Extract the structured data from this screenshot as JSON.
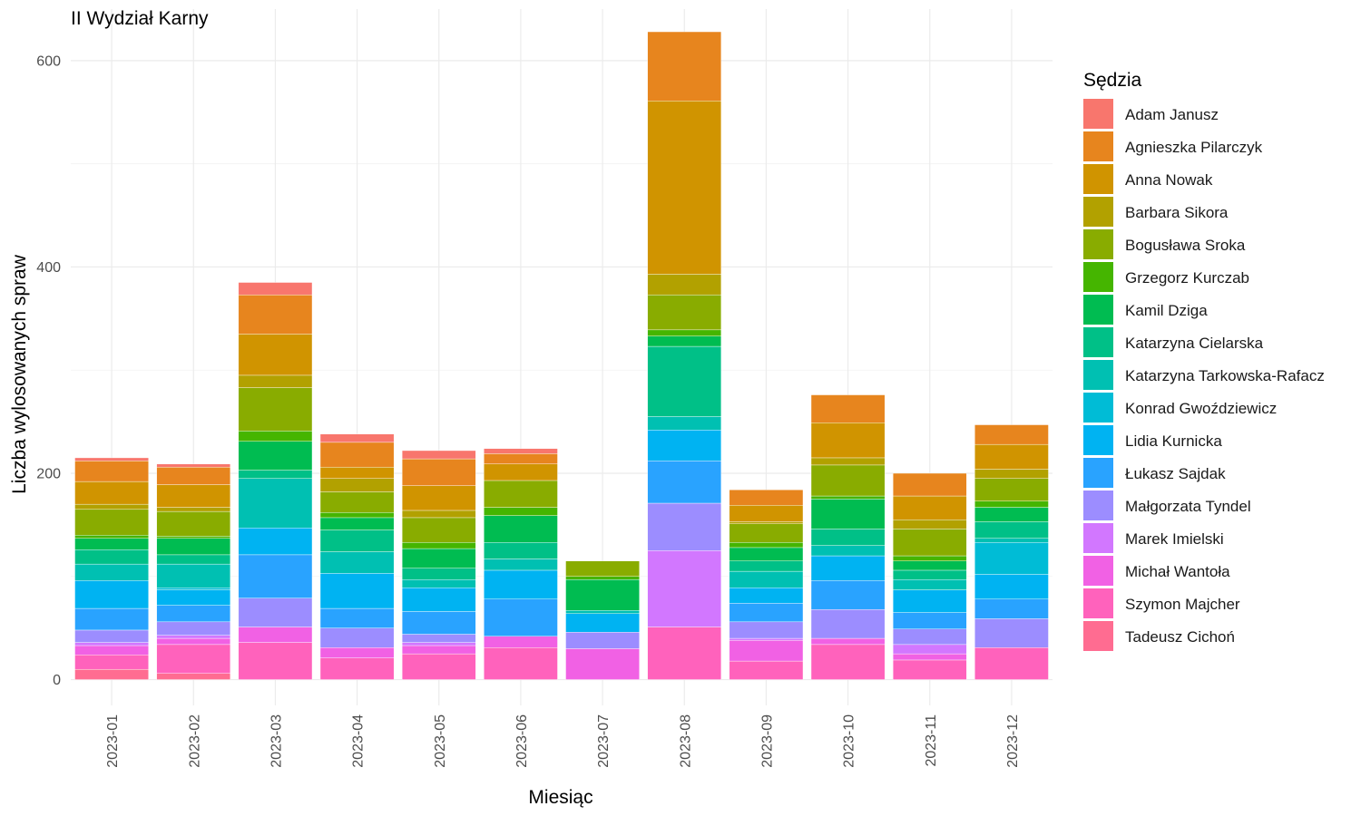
{
  "chart_data": {
    "type": "bar",
    "stacked": true,
    "title": "II Wydział Karny",
    "xlabel": "Miesiąc",
    "ylabel": "Liczba wylosowanych spraw",
    "ylim": [
      -25,
      650
    ],
    "yticks": [
      "0",
      "200",
      "400",
      "600"
    ],
    "ytick_values": [
      0,
      200,
      400,
      600
    ],
    "grid": true,
    "legend_position": "right",
    "legend_title": "Sędzia",
    "categories": [
      "2023-01",
      "2023-02",
      "2023-03",
      "2023-04",
      "2023-05",
      "2023-06",
      "2023-07",
      "2023-08",
      "2023-09",
      "2023-10",
      "2023-11",
      "2023-12"
    ],
    "series": [
      {
        "name": "Adam Janusz",
        "color": "#F8766D",
        "values": [
          3,
          3,
          12,
          8,
          8,
          5,
          0,
          0,
          0,
          0,
          0,
          0
        ]
      },
      {
        "name": "Agnieszka Pilarczyk",
        "color": "#E7851E",
        "values": [
          20,
          17,
          38,
          24,
          26,
          10,
          0,
          67,
          15,
          27,
          22,
          19
        ]
      },
      {
        "name": "Anna Nowak",
        "color": "#D09400",
        "values": [
          22,
          22,
          40,
          11,
          24,
          16,
          0,
          168,
          16,
          34,
          23,
          24
        ]
      },
      {
        "name": "Barbara Sikora",
        "color": "#B2A100",
        "values": [
          5,
          4,
          12,
          13,
          7,
          0,
          0,
          20,
          2,
          7,
          9,
          9
        ]
      },
      {
        "name": "Bogusława Sroka",
        "color": "#89AC00",
        "values": [
          25,
          24,
          42,
          20,
          24,
          26,
          15,
          34,
          18,
          30,
          26,
          22
        ]
      },
      {
        "name": "Grzegorz Kurczab",
        "color": "#45B500",
        "values": [
          3,
          2,
          10,
          5,
          6,
          8,
          3,
          6,
          5,
          3,
          5,
          6
        ]
      },
      {
        "name": "Kamil Dziga",
        "color": "#00BC51",
        "values": [
          11,
          16,
          28,
          12,
          19,
          26,
          30,
          10,
          13,
          29,
          9,
          14
        ]
      },
      {
        "name": "Katarzyna Cielarska",
        "color": "#00C087",
        "values": [
          14,
          9,
          8,
          21,
          11,
          16,
          0,
          68,
          10,
          16,
          9,
          16
        ]
      },
      {
        "name": "Katarzyna Tarkowska-Rafacz",
        "color": "#00C0B2",
        "values": [
          16,
          23,
          48,
          21,
          8,
          11,
          3,
          13,
          16,
          10,
          10,
          4
        ]
      },
      {
        "name": "Konrad Gwoździewicz",
        "color": "#00BCD6",
        "values": [
          0,
          2,
          0,
          0,
          0,
          0,
          0,
          0,
          0,
          0,
          0,
          31
        ]
      },
      {
        "name": "Lidia Kurnicka",
        "color": "#00B3F2",
        "values": [
          27,
          15,
          26,
          34,
          23,
          28,
          18,
          30,
          15,
          24,
          22,
          24
        ]
      },
      {
        "name": "Łukasz Sajdak",
        "color": "#29A3FF",
        "values": [
          21,
          16,
          42,
          19,
          22,
          36,
          0,
          41,
          18,
          28,
          16,
          19
        ]
      },
      {
        "name": "Małgorzata Tyndel",
        "color": "#9C8DFF",
        "values": [
          12,
          13,
          28,
          19,
          8,
          0,
          16,
          46,
          16,
          28,
          15,
          28
        ]
      },
      {
        "name": "Marek Imielski",
        "color": "#D277FF",
        "values": [
          3,
          3,
          0,
          0,
          3,
          0,
          0,
          74,
          2,
          0,
          9,
          0
        ]
      },
      {
        "name": "Michał Wantoła",
        "color": "#F161E4",
        "values": [
          9,
          6,
          15,
          10,
          8,
          11,
          30,
          0,
          20,
          6,
          6,
          0
        ]
      },
      {
        "name": "Szymon Majcher",
        "color": "#FF62BC",
        "values": [
          14,
          28,
          36,
          21,
          25,
          31,
          0,
          51,
          18,
          34,
          19,
          31
        ]
      },
      {
        "name": "Tadeusz Cichoń",
        "color": "#FF6C91",
        "values": [
          10,
          6,
          0,
          0,
          0,
          0,
          0,
          0,
          0,
          0,
          0,
          0
        ]
      }
    ]
  }
}
